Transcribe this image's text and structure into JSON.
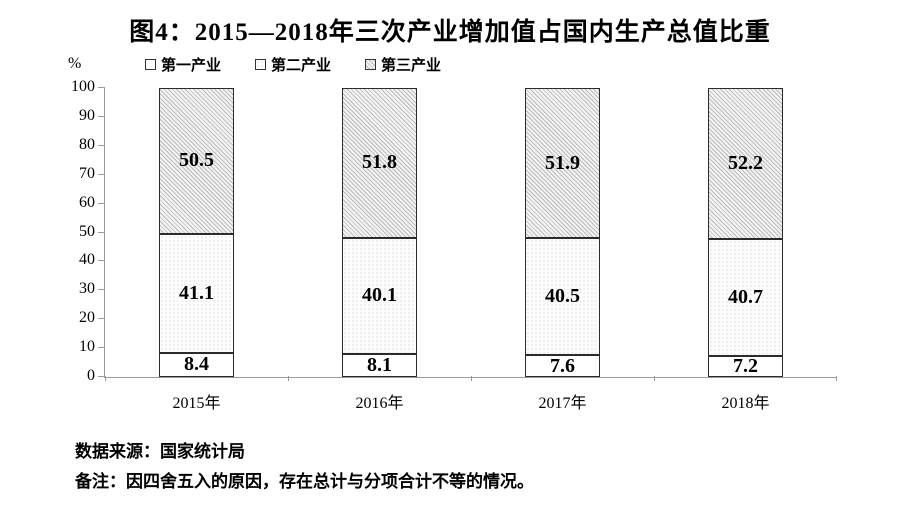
{
  "page": {
    "title": "图4：2015—2018年三次产业增加值占国内生产总值比重",
    "y_unit_label": "%",
    "source": "数据来源：国家统计局",
    "note": "备注：因四舍五入的原因，存在总计与分项合计不等的情况。"
  },
  "chart_data": {
    "type": "bar",
    "stacked": true,
    "title": "图4：2015—2018年三次产业增加值占国内生产总值比重",
    "categories": [
      "2015年",
      "2016年",
      "2017年",
      "2018年"
    ],
    "series": [
      {
        "name": "第一产业",
        "values": [
          8.4,
          8.1,
          7.6,
          7.2
        ],
        "fill": "white"
      },
      {
        "name": "第二产业",
        "values": [
          41.1,
          40.1,
          40.5,
          40.7
        ],
        "fill": "dots"
      },
      {
        "name": "第三产业",
        "values": [
          50.5,
          51.8,
          51.9,
          52.2
        ],
        "fill": "hatch"
      }
    ],
    "ylabel": "%",
    "ylim": [
      0,
      100
    ],
    "yticks": [
      0,
      10,
      20,
      30,
      40,
      50,
      60,
      70,
      80,
      90,
      100
    ],
    "grid": false,
    "legend_position": "top",
    "bar_value_labels": true,
    "colors": {
      "axis": "#9a9a9a",
      "bar_border": "#2b2b2b",
      "hatch_line": "#bcbcbc",
      "dot": "#c4c4c4",
      "text": "#000000"
    }
  }
}
